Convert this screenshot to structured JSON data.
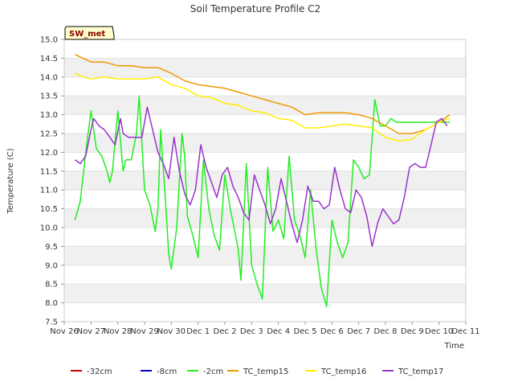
{
  "chart_data": {
    "type": "line",
    "title": "Soil Temperature Profile C2",
    "xlabel": "Time",
    "ylabel": "Temperature (C)",
    "station_badge": "SW_met",
    "ylim": [
      7.5,
      15.0
    ],
    "yticks": [
      7.5,
      8.0,
      8.5,
      9.0,
      9.5,
      10.0,
      10.5,
      11.0,
      11.5,
      12.0,
      12.5,
      13.0,
      13.5,
      14.0,
      14.5,
      15.0
    ],
    "ytick_labels": [
      "7.5",
      "8.0",
      "8.5",
      "9.0",
      "9.5",
      "10.0",
      "10.5",
      "11.0",
      "11.5",
      "12.0",
      "12.5",
      "13.0",
      "13.5",
      "14.0",
      "14.5",
      "15.0"
    ],
    "xlim": [
      0,
      15
    ],
    "xticks": [
      0,
      1,
      2,
      3,
      4,
      5,
      6,
      7,
      8,
      9,
      10,
      11,
      12,
      13,
      14,
      15
    ],
    "xtick_labels": [
      "Nov 26",
      "Nov 27",
      "Nov 28",
      "Nov 29",
      "Nov 30",
      "Dec 1",
      "Dec 2",
      "Dec 3",
      "Dec 4",
      "Dec 5",
      "Dec 6",
      "Dec 7",
      "Dec 8",
      "Dec 9",
      "Dec 10",
      "Dec 11"
    ],
    "grid": "horizontal bands",
    "legend_position": "bottom",
    "legend": [
      {
        "name": "-32cm",
        "color": "#cc0000"
      },
      {
        "name": "-8cm",
        "color": "#0000cc"
      },
      {
        "name": "-2cm",
        "color": "#22ee22"
      },
      {
        "name": "TC_temp15",
        "color": "#ee9900"
      },
      {
        "name": "TC_temp16",
        "color": "#ffee00"
      },
      {
        "name": "TC_temp17",
        "color": "#9933cc"
      }
    ],
    "series": [
      {
        "name": "-32cm",
        "color": "#cc0000",
        "x": [],
        "values": []
      },
      {
        "name": "-8cm",
        "color": "#0000cc",
        "x": [],
        "values": []
      },
      {
        "name": "-2cm",
        "color": "#22ee22",
        "x": [
          0.4,
          0.6,
          0.8,
          1.0,
          1.2,
          1.4,
          1.6,
          1.7,
          1.8,
          2.0,
          2.2,
          2.3,
          2.5,
          2.7,
          2.8,
          3.0,
          3.2,
          3.4,
          3.5,
          3.6,
          3.8,
          3.9,
          4.0,
          4.2,
          4.4,
          4.5,
          4.6,
          4.8,
          5.0,
          5.2,
          5.4,
          5.6,
          5.8,
          6.0,
          6.2,
          6.4,
          6.5,
          6.6,
          6.8,
          7.0,
          7.2,
          7.4,
          7.6,
          7.8,
          8.0,
          8.2,
          8.4,
          8.6,
          8.8,
          9.0,
          9.2,
          9.4,
          9.6,
          9.8,
          10.0,
          10.2,
          10.4,
          10.6,
          10.8,
          11.0,
          11.2,
          11.4,
          11.6,
          11.8,
          12.0,
          12.2,
          12.4,
          12.6,
          12.8,
          13.0,
          13.2,
          13.4,
          13.6,
          13.8,
          14.0,
          14.2,
          14.4
        ],
        "values": [
          10.2,
          10.7,
          12.0,
          13.1,
          12.1,
          11.9,
          11.5,
          11.2,
          11.5,
          13.1,
          11.5,
          11.8,
          11.8,
          12.5,
          13.5,
          11.0,
          10.6,
          9.9,
          10.5,
          12.6,
          10.5,
          9.3,
          8.9,
          10.0,
          12.5,
          11.9,
          10.3,
          9.8,
          9.2,
          11.8,
          10.5,
          9.8,
          9.4,
          11.4,
          10.5,
          9.8,
          9.4,
          8.6,
          11.7,
          9.0,
          8.5,
          8.1,
          11.6,
          9.9,
          10.2,
          9.7,
          11.9,
          10.2,
          9.8,
          9.2,
          11.0,
          9.5,
          8.4,
          7.9,
          10.2,
          9.6,
          9.2,
          9.6,
          11.8,
          11.6,
          11.3,
          11.4,
          13.4,
          12.7,
          12.7,
          12.9,
          12.8,
          12.8,
          12.8,
          12.8,
          12.8,
          12.8,
          12.8,
          12.8,
          12.8,
          12.8,
          12.8
        ]
      },
      {
        "name": "TC_temp15",
        "color": "#ee9900",
        "x": [
          0.4,
          0.7,
          1.0,
          1.5,
          2.0,
          2.5,
          3.0,
          3.5,
          4.0,
          4.5,
          5.0,
          5.5,
          6.0,
          6.5,
          7.0,
          7.5,
          8.0,
          8.5,
          9.0,
          9.5,
          10.0,
          10.5,
          11.0,
          11.5,
          12.0,
          12.5,
          13.0,
          13.5,
          14.0,
          14.4
        ],
        "values": [
          14.6,
          14.5,
          14.4,
          14.4,
          14.3,
          14.3,
          14.25,
          14.25,
          14.1,
          13.9,
          13.8,
          13.75,
          13.7,
          13.6,
          13.5,
          13.4,
          13.3,
          13.2,
          13.0,
          13.05,
          13.05,
          13.05,
          13.0,
          12.9,
          12.7,
          12.5,
          12.5,
          12.6,
          12.8,
          13.0
        ]
      },
      {
        "name": "TC_temp16",
        "color": "#ffee00",
        "x": [
          0.4,
          0.7,
          1.0,
          1.5,
          2.0,
          2.5,
          3.0,
          3.5,
          4.0,
          4.5,
          5.0,
          5.5,
          6.0,
          6.5,
          7.0,
          7.5,
          8.0,
          8.5,
          9.0,
          9.5,
          10.0,
          10.5,
          11.0,
          11.5,
          12.0,
          12.5,
          13.0,
          13.5,
          14.0,
          14.4
        ],
        "values": [
          14.1,
          14.0,
          13.95,
          14.0,
          13.95,
          13.95,
          13.95,
          14.0,
          13.8,
          13.7,
          13.5,
          13.45,
          13.3,
          13.25,
          13.1,
          13.05,
          12.9,
          12.85,
          12.65,
          12.65,
          12.7,
          12.75,
          12.7,
          12.65,
          12.4,
          12.3,
          12.35,
          12.6,
          12.8,
          12.9
        ]
      },
      {
        "name": "TC_temp17",
        "color": "#9933cc",
        "x": [
          0.4,
          0.6,
          0.8,
          1.0,
          1.1,
          1.3,
          1.5,
          1.7,
          1.9,
          2.1,
          2.2,
          2.4,
          2.7,
          2.9,
          3.1,
          3.3,
          3.5,
          3.7,
          3.9,
          4.1,
          4.3,
          4.5,
          4.7,
          4.9,
          5.1,
          5.3,
          5.5,
          5.7,
          5.9,
          6.1,
          6.3,
          6.5,
          6.7,
          6.9,
          7.1,
          7.3,
          7.5,
          7.7,
          7.9,
          8.1,
          8.3,
          8.5,
          8.7,
          8.9,
          9.1,
          9.3,
          9.5,
          9.7,
          9.9,
          10.1,
          10.3,
          10.5,
          10.7,
          10.9,
          11.1,
          11.3,
          11.5,
          11.7,
          11.9,
          12.1,
          12.3,
          12.5,
          12.7,
          12.9,
          13.1,
          13.3,
          13.5,
          13.7,
          13.9,
          14.1,
          14.3
        ],
        "values": [
          11.8,
          11.7,
          11.9,
          12.6,
          12.9,
          12.7,
          12.6,
          12.4,
          12.2,
          12.9,
          12.5,
          12.4,
          12.4,
          12.4,
          13.2,
          12.6,
          12.0,
          11.7,
          11.3,
          12.4,
          11.5,
          10.9,
          10.6,
          11.0,
          12.2,
          11.6,
          11.2,
          10.8,
          11.4,
          11.6,
          11.1,
          10.8,
          10.4,
          10.2,
          11.4,
          11.0,
          10.6,
          10.1,
          10.5,
          11.3,
          10.7,
          10.1,
          9.6,
          10.2,
          11.1,
          10.7,
          10.7,
          10.5,
          10.6,
          11.6,
          11.0,
          10.5,
          10.4,
          11.0,
          10.8,
          10.3,
          9.5,
          10.1,
          10.5,
          10.3,
          10.1,
          10.2,
          10.8,
          11.6,
          11.7,
          11.6,
          11.6,
          12.2,
          12.8,
          12.9,
          12.7
        ]
      }
    ]
  }
}
